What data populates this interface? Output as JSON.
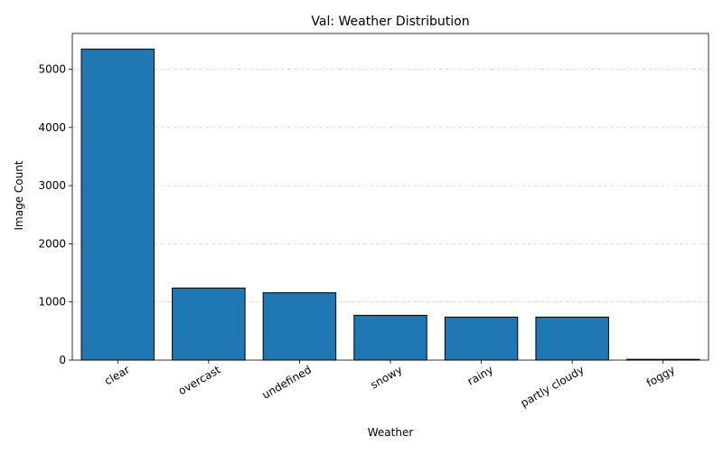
{
  "chart_data": {
    "type": "bar",
    "title": "Val: Weather Distribution",
    "xlabel": "Weather",
    "ylabel": "Image Count",
    "categories": [
      "clear",
      "overcast",
      "undefined",
      "snowy",
      "rainy",
      "partly cloudy",
      "foggy"
    ],
    "values": [
      5346,
      1239,
      1157,
      769,
      738,
      739,
      13
    ],
    "ylim": [
      0,
      5614
    ],
    "yticks": [
      0,
      1000,
      2000,
      3000,
      4000,
      5000
    ],
    "grid": "horizontal-dashed",
    "bar_color": "#1f77b4",
    "edge_color": "#000000"
  }
}
